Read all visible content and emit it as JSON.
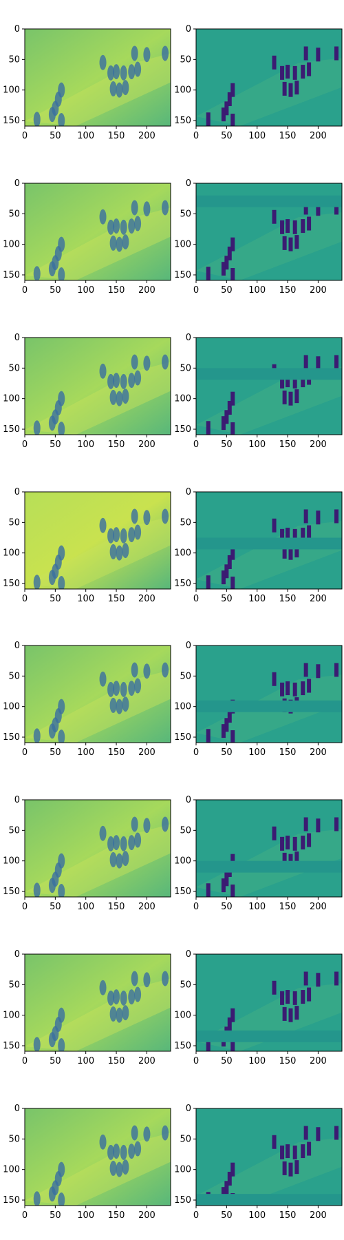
{
  "figure": {
    "rows": 8,
    "columns": 2,
    "x_ticks": [
      "0",
      "50",
      "100",
      "150",
      "200"
    ],
    "y_ticks": [
      "0",
      "50",
      "100",
      "150"
    ],
    "x_range": [
      0,
      239
    ],
    "y_range": [
      0,
      159
    ],
    "colormap": "viridis",
    "colors": {
      "smooth_base": "#79c46a",
      "smooth_mid": "#58b77a",
      "smooth_bright": "#b7df58",
      "detail_base": "#2aa18c",
      "detail_mid": "#24968c",
      "detail_dark": "#3b1b72",
      "detail_deep": "#2a2a6b",
      "frame": "#000000"
    },
    "band_y": [
      null,
      20,
      50,
      75,
      90,
      100,
      125,
      140
    ]
  }
}
